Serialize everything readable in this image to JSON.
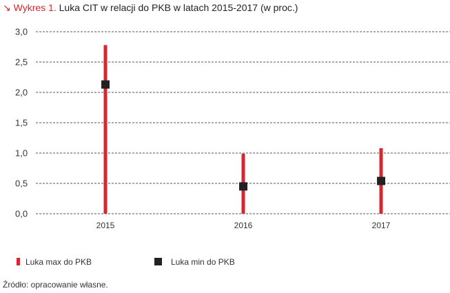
{
  "title": {
    "prefix": "↘ Wykres 1.",
    "text": "Luka CIT w relacji do PKB w latach 2015-2017 (w proc.)"
  },
  "source": "Źródło: opracowanie własne.",
  "colors": {
    "max_bar": "#d7262f",
    "min_marker": "#222222",
    "grid": "#555555"
  },
  "chart_data": {
    "type": "bar",
    "categories": [
      "2015",
      "2016",
      "2017"
    ],
    "series": [
      {
        "name": "Luka max do PKB",
        "values": [
          2.78,
          0.99,
          1.08
        ],
        "style": "bar"
      },
      {
        "name": "Luka min do PKB",
        "values": [
          2.13,
          0.45,
          0.54
        ],
        "style": "marker"
      }
    ],
    "ylim": [
      0,
      3.0
    ],
    "yticks": [
      "0,0",
      "0,5",
      "1,0",
      "1,5",
      "2,0",
      "2,5",
      "3,0"
    ],
    "ytick_values": [
      0,
      0.5,
      1.0,
      1.5,
      2.0,
      2.5,
      3.0
    ],
    "grid": "dashed-horizontal",
    "legend": "bottom-left",
    "xlabel": "",
    "ylabel": ""
  }
}
